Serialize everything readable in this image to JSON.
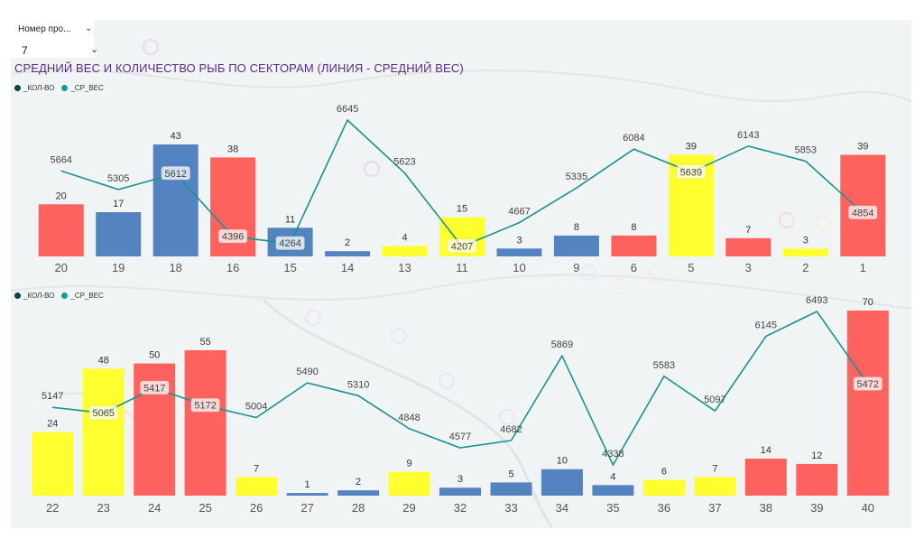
{
  "slicer": {
    "label": "Номер про...",
    "value": "7"
  },
  "title": "СРЕДНИЙ ВЕС И КОЛИЧЕСТВО РЫБ ПО СЕКТОРАМ (ЛИНИЯ  - СРЕДНИЙ ВЕС)",
  "colors": {
    "blue": "#5484bf",
    "red": "#fd625e",
    "yellow": "#fffe2e",
    "line": "#1a9391",
    "legend_count": "#0f3f4a",
    "legend_weight": "#1a9a96"
  },
  "chart_data": [
    {
      "type": "bar",
      "legend": [
        "_КОЛ-ВО",
        "_СР_ВЕС"
      ],
      "categories": [
        "20",
        "19",
        "18",
        "16",
        "15",
        "14",
        "13",
        "11",
        "10",
        "9",
        "6",
        "5",
        "3",
        "2",
        "1"
      ],
      "series": [
        {
          "name": "_КОЛ-ВО",
          "values": [
            20,
            17,
            43,
            38,
            11,
            2,
            4,
            15,
            3,
            8,
            8,
            39,
            7,
            3,
            39
          ],
          "colors": [
            "red",
            "blue",
            "blue",
            "red",
            "blue",
            "blue",
            "yellow",
            "yellow",
            "blue",
            "blue",
            "red",
            "yellow",
            "red",
            "yellow",
            "red"
          ]
        },
        {
          "name": "_СР_ВЕС",
          "type": "line",
          "values": [
            5664,
            5305,
            5612,
            4396,
            4264,
            6645,
            5623,
            4207,
            4667,
            5335,
            6084,
            5639,
            6143,
            5853,
            4854
          ]
        }
      ]
    },
    {
      "type": "bar",
      "legend": [
        "_КОЛ-ВО",
        "_СР_ВЕС"
      ],
      "categories": [
        "22",
        "23",
        "24",
        "25",
        "26",
        "27",
        "28",
        "29",
        "32",
        "33",
        "34",
        "35",
        "36",
        "37",
        "38",
        "39",
        "40"
      ],
      "series": [
        {
          "name": "_КОЛ-ВО",
          "values": [
            24,
            48,
            50,
            55,
            7,
            1,
            2,
            9,
            3,
            5,
            10,
            4,
            6,
            7,
            14,
            12,
            70
          ],
          "colors": [
            "yellow",
            "yellow",
            "red",
            "red",
            "yellow",
            "blue",
            "blue",
            "yellow",
            "blue",
            "blue",
            "blue",
            "blue",
            "yellow",
            "yellow",
            "red",
            "red",
            "red"
          ]
        },
        {
          "name": "_СР_ВЕС",
          "type": "line",
          "values": [
            5147,
            5065,
            5417,
            5172,
            5004,
            5490,
            5310,
            4848,
            4577,
            4682,
            5869,
            4338,
            5583,
            5097,
            6145,
            6493,
            5472
          ]
        }
      ]
    }
  ]
}
